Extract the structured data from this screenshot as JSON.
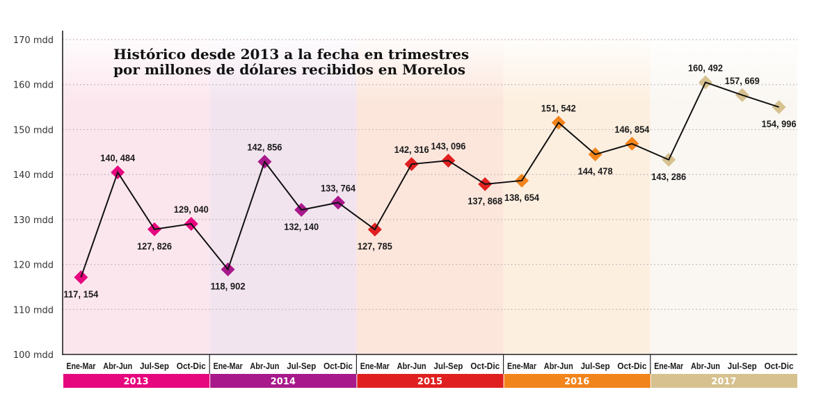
{
  "chart_data": {
    "type": "line",
    "title": "Histórico desde 2013 a la fecha en trimestres por millones de dólares recibidos en Morelos",
    "title_lines": [
      "Histórico desde 2013 a la fecha en trimestres",
      "por millones de dólares recibidos en Morelos"
    ],
    "xlabel": "",
    "ylabel": "",
    "ylim": [
      100,
      170
    ],
    "y_ticks": [
      100,
      110,
      120,
      130,
      140,
      150,
      160,
      170
    ],
    "y_tick_labels": [
      "100 mdd",
      "110 mdd",
      "120 mdd",
      "130 mdd",
      "140 mdd",
      "150 mdd",
      "160 mdd",
      "170 mdd"
    ],
    "grid": true,
    "legend": "none",
    "quarters": [
      "Ene-Mar",
      "Abr-Jun",
      "Jul-Sep",
      "Oct-Dic"
    ],
    "years": [
      {
        "year": "2013",
        "color": "#e6077f",
        "band_color": "#fce6ee"
      },
      {
        "year": "2014",
        "color": "#a8198b",
        "band_color": "#f2e4ef"
      },
      {
        "year": "2015",
        "color": "#e02020",
        "band_color": "#fce6dc"
      },
      {
        "year": "2016",
        "color": "#f2841c",
        "band_color": "#fdefe0"
      },
      {
        "year": "2017",
        "color": "#d6c18f",
        "band_color": "#faf7f2"
      }
    ],
    "series": [
      {
        "name": "Millones de dólares",
        "values": [
          117.154,
          140.484,
          127.826,
          129.04,
          118.902,
          142.856,
          132.14,
          133.764,
          127.785,
          142.316,
          143.096,
          137.868,
          138.654,
          151.542,
          144.478,
          146.854,
          143.286,
          160.492,
          157.669,
          154.996
        ],
        "labels": [
          "117, 154",
          "140, 484",
          "127, 826",
          "129, 040",
          "118, 902",
          "142, 856",
          "132, 140",
          "133, 764",
          "127, 785",
          "142, 316",
          "143, 096",
          "137, 868",
          "138, 654",
          "151, 542",
          "144, 478",
          "146, 854",
          "143, 286",
          "160, 492",
          "157, 669",
          "154, 996"
        ],
        "label_positions": [
          "below",
          "above",
          "below",
          "above",
          "below",
          "above",
          "below",
          "above",
          "below",
          "above",
          "above",
          "below",
          "below",
          "above",
          "below",
          "above",
          "below",
          "above",
          "above",
          "below"
        ]
      }
    ]
  }
}
